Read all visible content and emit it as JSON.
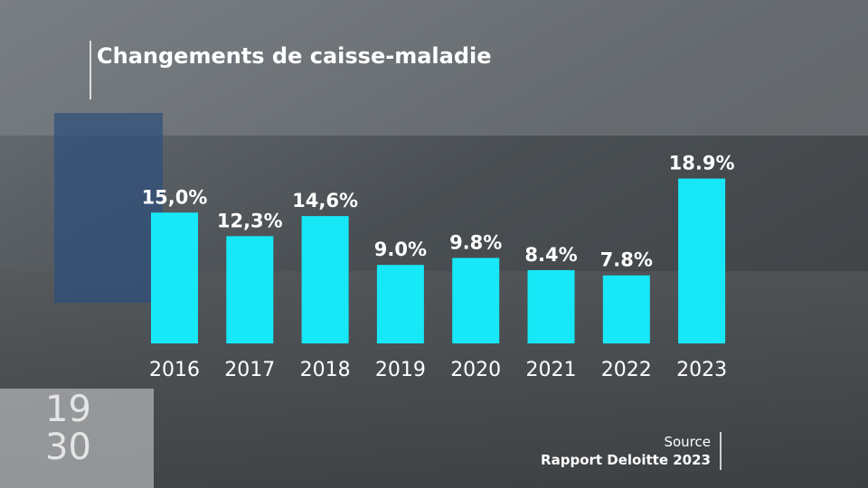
{
  "chart_data": {
    "type": "bar",
    "title": "Changements de caisse-maladie",
    "categories": [
      "2016",
      "2017",
      "2018",
      "2019",
      "2020",
      "2021",
      "2022",
      "2023"
    ],
    "values": [
      15.0,
      12.3,
      14.6,
      9.0,
      9.8,
      8.4,
      7.8,
      18.9
    ],
    "value_labels": [
      "15,0%",
      "12,3%",
      "14,6%",
      "9.0%",
      "9.8%",
      "8.4%",
      "7.8%",
      "18.9%"
    ],
    "color": "#17e8f7",
    "ylim": [
      0,
      20
    ]
  },
  "source": {
    "label": "Source",
    "name": "Rapport Deloitte 2023"
  },
  "logo": {
    "top": "19",
    "bottom": "30"
  }
}
